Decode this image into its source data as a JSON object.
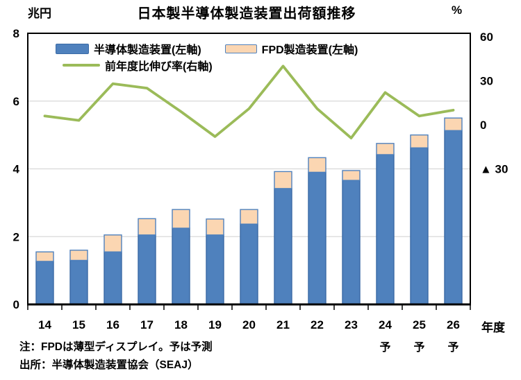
{
  "header": {
    "title": "日本製半導体製造装置出荷額推移",
    "left_unit": "兆円",
    "right_unit": "%"
  },
  "chart_data": {
    "type": "bar+line",
    "stacked_bars": true,
    "categories": [
      "14",
      "15",
      "16",
      "17",
      "18",
      "19",
      "20",
      "21",
      "22",
      "23",
      "24",
      "25",
      "26"
    ],
    "category_sub_labels": [
      "",
      "",
      "",
      "",
      "",
      "",
      "",
      "",
      "",
      "",
      "予",
      "予",
      "予"
    ],
    "x_axis_unit": "年度",
    "series": [
      {
        "name": "半導体製造装置(左軸)",
        "type": "bar",
        "axis": "left",
        "color": "#4f81bd",
        "border_color": "#3a6aa6",
        "values": [
          1.27,
          1.3,
          1.55,
          2.05,
          2.25,
          2.05,
          2.37,
          3.42,
          3.9,
          3.66,
          4.42,
          4.62,
          5.13
        ]
      },
      {
        "name": "FPD製造装置(左軸)",
        "type": "bar",
        "axis": "left",
        "color": "#fbd6b2",
        "border_color": "#4f81bd",
        "values": [
          0.28,
          0.3,
          0.5,
          0.48,
          0.55,
          0.47,
          0.43,
          0.5,
          0.43,
          0.29,
          0.33,
          0.38,
          0.37
        ]
      },
      {
        "name": "前年度比伸び率(右軸)",
        "type": "line",
        "axis": "right",
        "color": "#9bbb59",
        "values": [
          6,
          3,
          28,
          25,
          9,
          -8,
          11,
          40,
          11,
          -9,
          22,
          6,
          10
        ]
      }
    ],
    "left_axis": {
      "unit": "兆円",
      "ticks": [
        0,
        2,
        4,
        6,
        8
      ],
      "range": [
        0,
        8
      ],
      "gridlines_at": [
        2,
        4,
        6
      ]
    },
    "right_axis": {
      "unit": "%",
      "tick_values": [
        60,
        30,
        0,
        -30
      ],
      "tick_labels": [
        "60",
        "30",
        "0",
        "▲ 30"
      ]
    },
    "legend_position": "top-inside",
    "grid": true
  },
  "notes": {
    "line1": "注：FPDは薄型ディスプレイ。予は予測",
    "line2": "出所：半導体製造装置協会（SEAJ）"
  },
  "colors": {
    "semiconductor_bar": "#4f81bd",
    "fpd_bar": "#fbd6b2",
    "growth_line": "#9bbb59",
    "gridline": "#d9d9d9",
    "frame": "#000000"
  }
}
